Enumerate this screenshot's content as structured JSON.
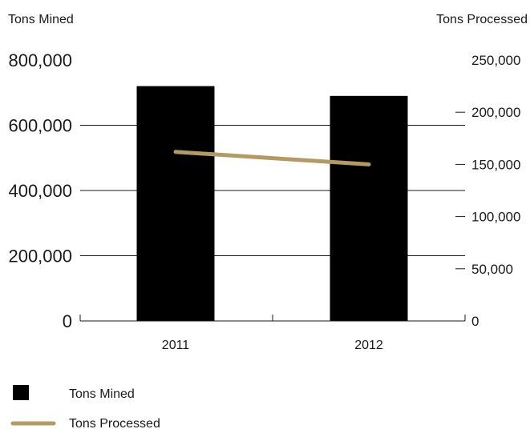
{
  "chart_data": {
    "type": "bar",
    "categories": [
      "2011",
      "2012"
    ],
    "series": [
      {
        "name": "Tons Mined",
        "type": "bar",
        "axis": "left",
        "values": [
          720000,
          690000
        ],
        "color": "#000000"
      },
      {
        "name": "Tons Processed",
        "type": "line",
        "axis": "right",
        "values": [
          162000,
          150000
        ],
        "color": "#b39a62"
      }
    ],
    "y_left": {
      "label": "Tons Mined",
      "ylim": [
        0,
        800000
      ],
      "ticks": [
        0,
        200000,
        400000,
        600000,
        800000
      ],
      "tick_labels": [
        "0",
        "200,000",
        "400,000",
        "600,000",
        "800,000"
      ]
    },
    "y_right": {
      "label": "Tons Processed",
      "ylim": [
        0,
        250000
      ],
      "ticks": [
        0,
        50000,
        100000,
        150000,
        200000,
        250000
      ],
      "tick_labels": [
        "0",
        "50,000",
        "100,000",
        "150,000",
        "200,000",
        "250,000"
      ]
    },
    "grid": true,
    "legend": {
      "position": "bottom-left",
      "entries": [
        "Tons Mined",
        "Tons Processed"
      ]
    }
  }
}
